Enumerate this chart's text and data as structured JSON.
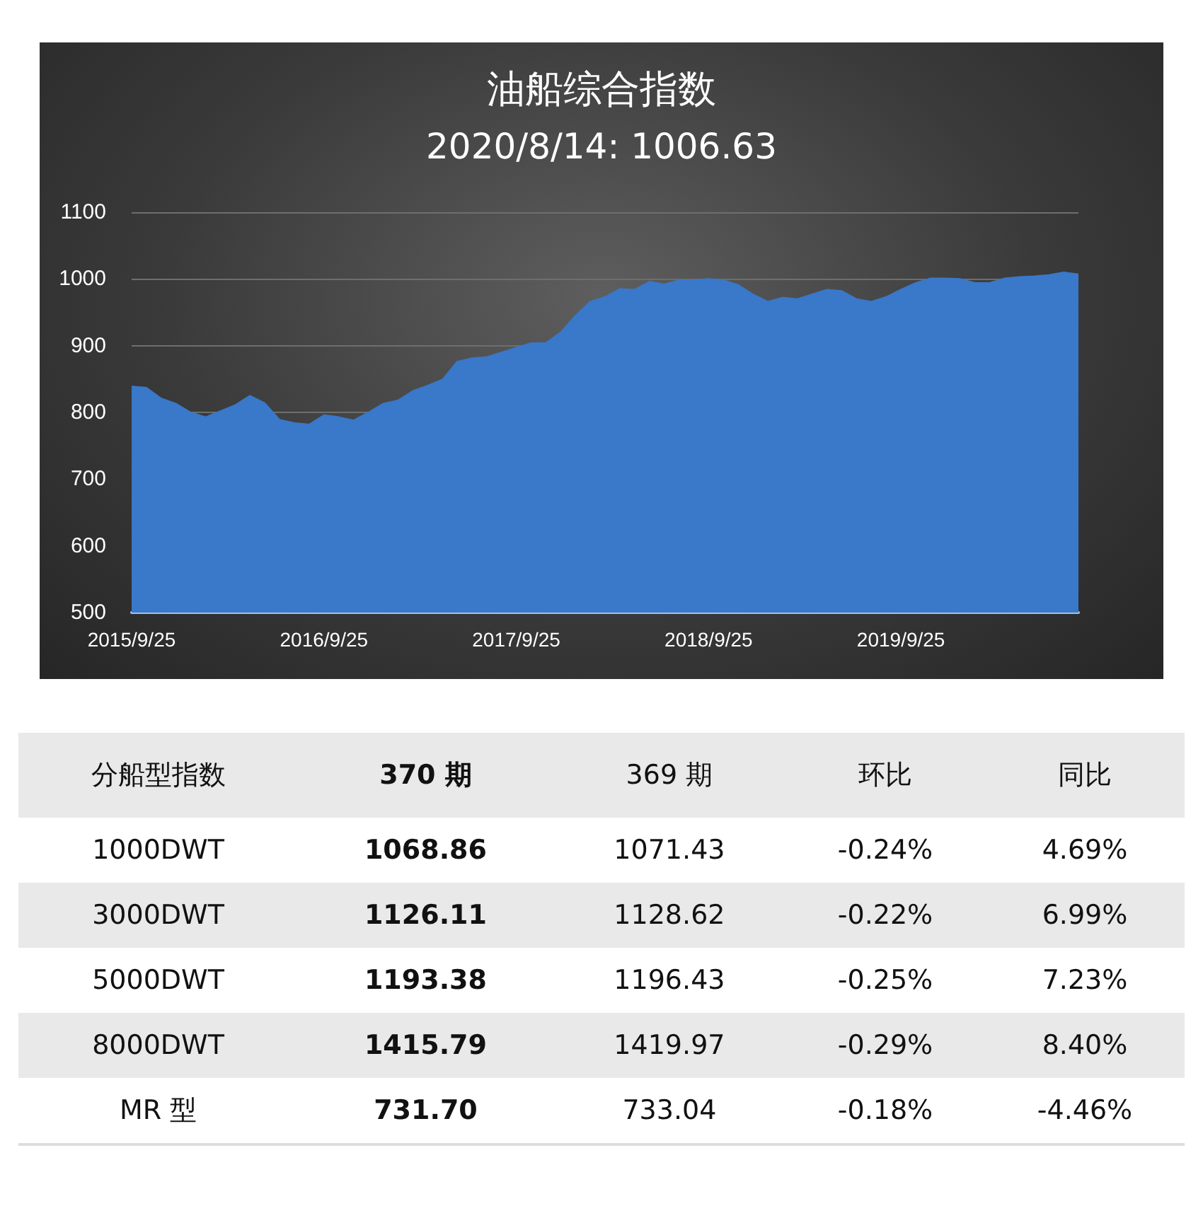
{
  "chart_data": [
    {
      "type": "area",
      "title": "油船综合指数",
      "subtitle": "2020/8/14: 1006.63",
      "categories": [
        "2015/9/25",
        null,
        null,
        null,
        null,
        null,
        null,
        null,
        null,
        null,
        null,
        null,
        null,
        "2016/9/25",
        null,
        null,
        null,
        null,
        null,
        null,
        null,
        null,
        null,
        null,
        null,
        null,
        "2017/9/25",
        null,
        null,
        null,
        null,
        null,
        null,
        null,
        null,
        null,
        null,
        null,
        null,
        "2018/9/25",
        null,
        null,
        null,
        null,
        null,
        null,
        null,
        null,
        null,
        null,
        null,
        null,
        "2019/9/25",
        null,
        null,
        null,
        null,
        null,
        null,
        null,
        null,
        null,
        null,
        null,
        null
      ],
      "series": [
        {
          "color": "#3a78c9",
          "values": [
            839,
            837,
            821,
            813,
            800,
            793,
            802,
            811,
            825,
            814,
            789,
            784,
            782,
            796,
            793,
            788,
            800,
            813,
            818,
            832,
            840,
            849,
            876,
            881,
            883,
            890,
            897,
            904,
            904,
            920,
            945,
            966,
            973,
            985,
            984,
            996,
            992,
            998,
            998,
            1000,
            998,
            991,
            977,
            966,
            972,
            970,
            977,
            984,
            982,
            970,
            966,
            973,
            984,
            994,
            1001,
            1001,
            1000,
            994,
            994,
            1001,
            1003,
            1004,
            1006,
            1010,
            1007
          ]
        }
      ],
      "ylim": [
        500,
        1100
      ],
      "yticks": [
        500,
        600,
        700,
        800,
        900,
        1000,
        1100
      ],
      "grid": "y"
    },
    {
      "type": "other",
      "categories": [
        "分船型指数",
        "370 期",
        "369 期",
        "环比",
        "同比"
      ],
      "y_categories": [
        "1000DWT",
        "3000DWT",
        "5000DWT",
        "8000DWT",
        "MR 型"
      ],
      "cell_labels": [
        [
          "1068.86",
          "1071.43",
          "-0.24%",
          "4.69%"
        ],
        [
          "1126.11",
          "1128.62",
          "-0.22%",
          "6.99%"
        ],
        [
          "1193.38",
          "1196.43",
          "-0.25%",
          "7.23%"
        ],
        [
          "1415.79",
          "1419.97",
          "-0.29%",
          "8.40%"
        ],
        [
          "731.70",
          "733.04",
          "-0.18%",
          "-4.46%"
        ]
      ]
    }
  ]
}
